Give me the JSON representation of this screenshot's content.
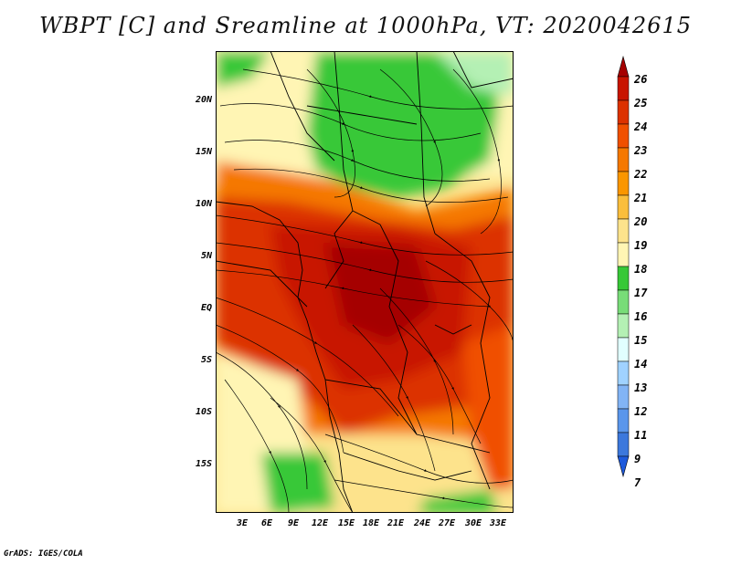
{
  "title": "WBPT [C] and Sreamline at 1000hPa, VT: 2020042615",
  "footer": "GrADS: IGES/COLA",
  "map": {
    "lat_labels": [
      "20N",
      "15N",
      "10N",
      "5N",
      "EQ",
      "5S",
      "10S",
      "15S"
    ],
    "lon_labels": [
      "3E",
      "6E",
      "9E",
      "12E",
      "15E",
      "18E",
      "21E",
      "24E",
      "27E",
      "30E",
      "33E"
    ]
  },
  "colorbar": {
    "levels": [
      "26",
      "25",
      "24",
      "23",
      "22",
      "21",
      "20",
      "19",
      "18",
      "17",
      "16",
      "15",
      "14",
      "13",
      "12",
      "11",
      "9",
      "7"
    ],
    "colors": [
      "#a50000",
      "#c81400",
      "#dc3200",
      "#f05000",
      "#f57800",
      "#fa9600",
      "#fabe3c",
      "#fde38c",
      "#fff5b4",
      "#37c837",
      "#78dc78",
      "#b4f0b4",
      "#e1ffff",
      "#a0d2ff",
      "#82b4f5",
      "#5a96eb",
      "#3c78dc",
      "#1e5adc"
    ]
  }
}
